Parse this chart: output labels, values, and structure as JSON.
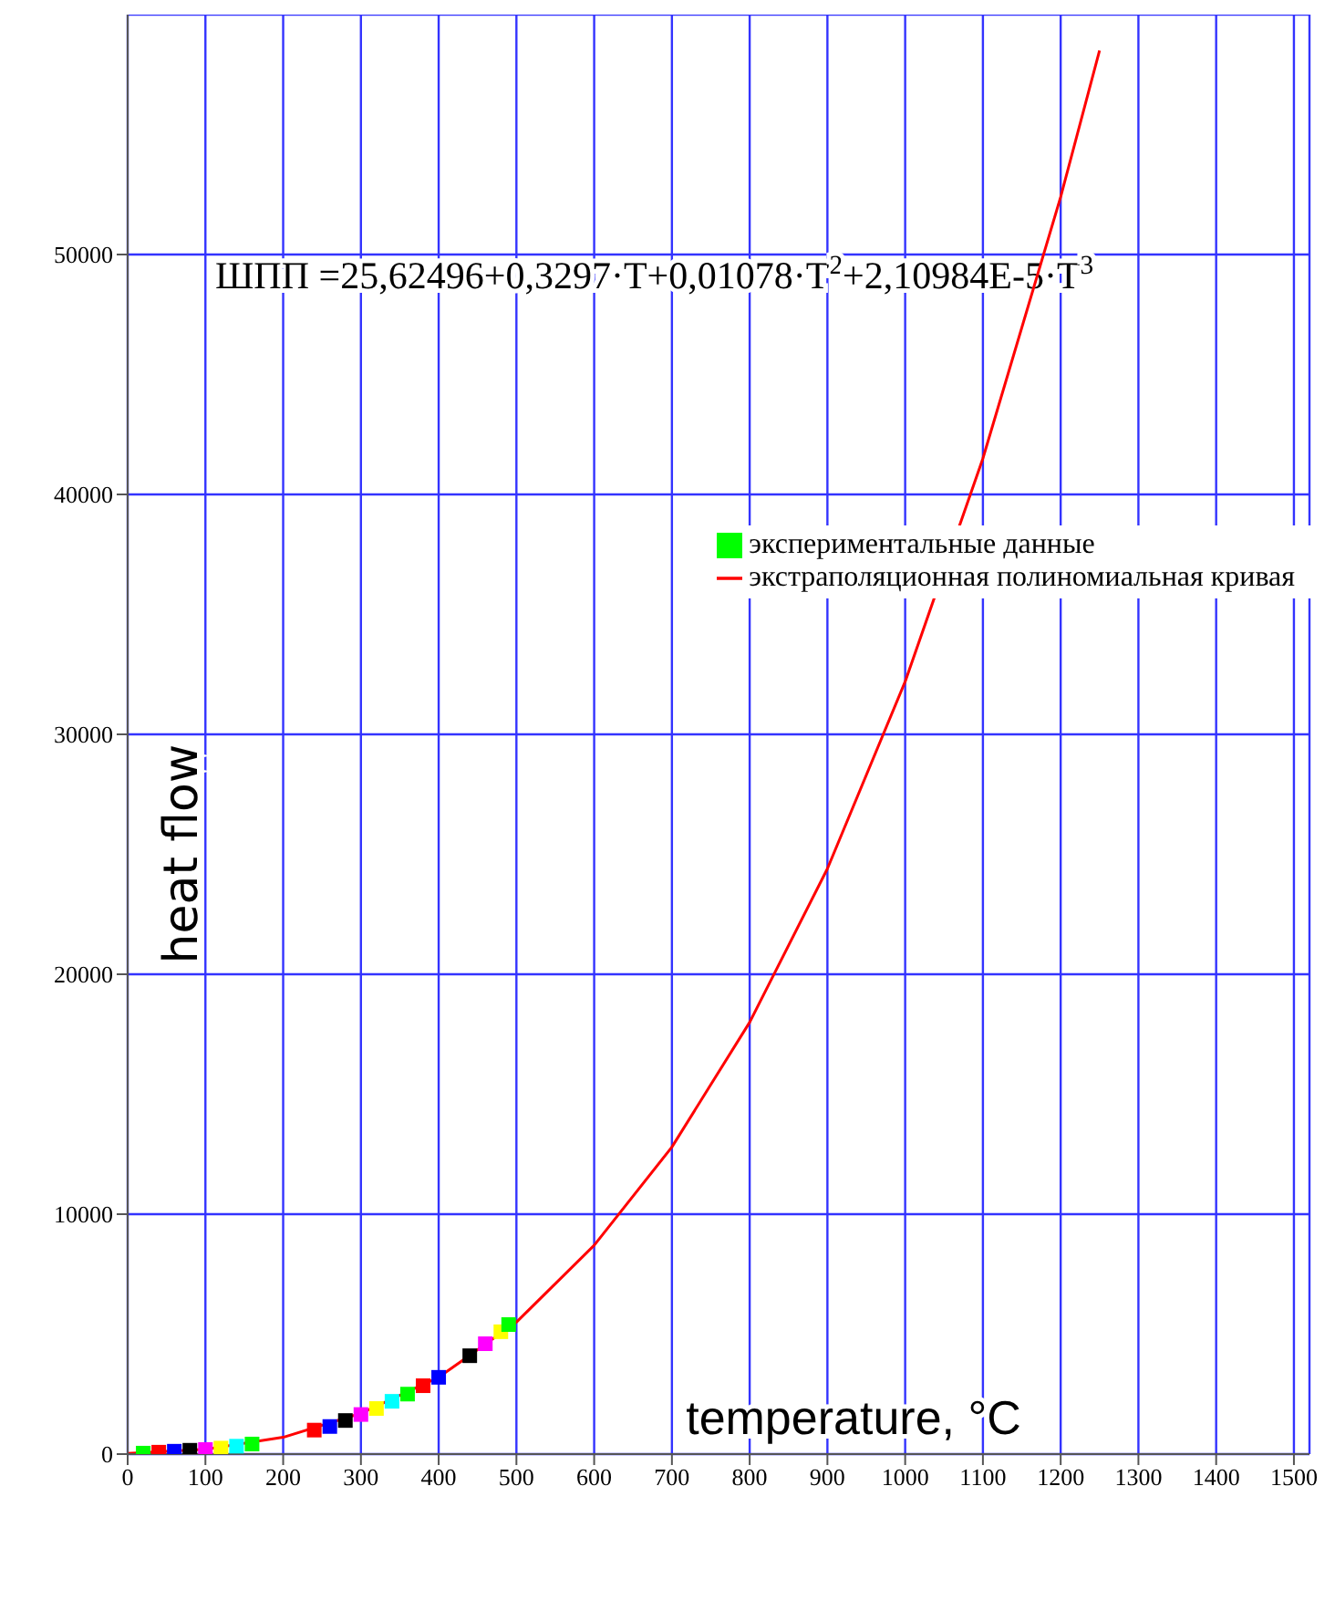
{
  "chart_data": {
    "type": "line",
    "xlabel": "temperature, °C",
    "ylabel": "heat flow",
    "annotations": [
      "ШПП =25,62496+0,3297·T+0,01078·T$^{2}$+2,10984E-5·T$^{3}$"
    ],
    "xlim": [
      0,
      1520
    ],
    "ylim": [
      0,
      60000
    ],
    "xticks": [
      0,
      100,
      200,
      300,
      400,
      500,
      600,
      700,
      800,
      900,
      1000,
      1100,
      1200,
      1300,
      1400,
      1500
    ],
    "yticks": [
      0,
      10000,
      20000,
      30000,
      40000,
      50000
    ],
    "grid": true,
    "legend": "top right",
    "series": [
      {
        "name": "экспериментальные данные",
        "type": "scatter",
        "marker": "square",
        "color": "#00ff00",
        "x": [
          20,
          40,
          60,
          80,
          100,
          120,
          140,
          160,
          240,
          260,
          280,
          300,
          320,
          340,
          360,
          380,
          400,
          440,
          460,
          480,
          490
        ],
        "values": [
          40,
          80,
          120,
          160,
          190,
          250,
          330,
          420,
          1000,
          1150,
          1400,
          1650,
          1900,
          2200,
          2500,
          2850,
          3200,
          4100,
          4600,
          5100,
          5400
        ],
        "colors": [
          "#00ff00",
          "#ff0000",
          "#0000ff",
          "#000000",
          "#ff00ff",
          "#ffff00",
          "#00ffff",
          "#00ff00",
          "#ff0000",
          "#0000ff",
          "#000000",
          "#ff00ff",
          "#ffff00",
          "#00ffff",
          "#00ff00",
          "#ff0000",
          "#0000ff",
          "#000000",
          "#ff00ff",
          "#ffff00",
          "#00ff00"
        ]
      },
      {
        "name": "экстраполяционная полиномиальная кривая",
        "color": "#ff0000",
        "x": [
          0,
          100,
          200,
          300,
          400,
          500,
          600,
          700,
          800,
          900,
          1000,
          1100,
          1200,
          1250
        ],
        "values": [
          30,
          200,
          700,
          1700,
          3200,
          5500,
          8700,
          12800,
          18000,
          24400,
          32200,
          41500,
          52400,
          58500
        ]
      }
    ]
  }
}
